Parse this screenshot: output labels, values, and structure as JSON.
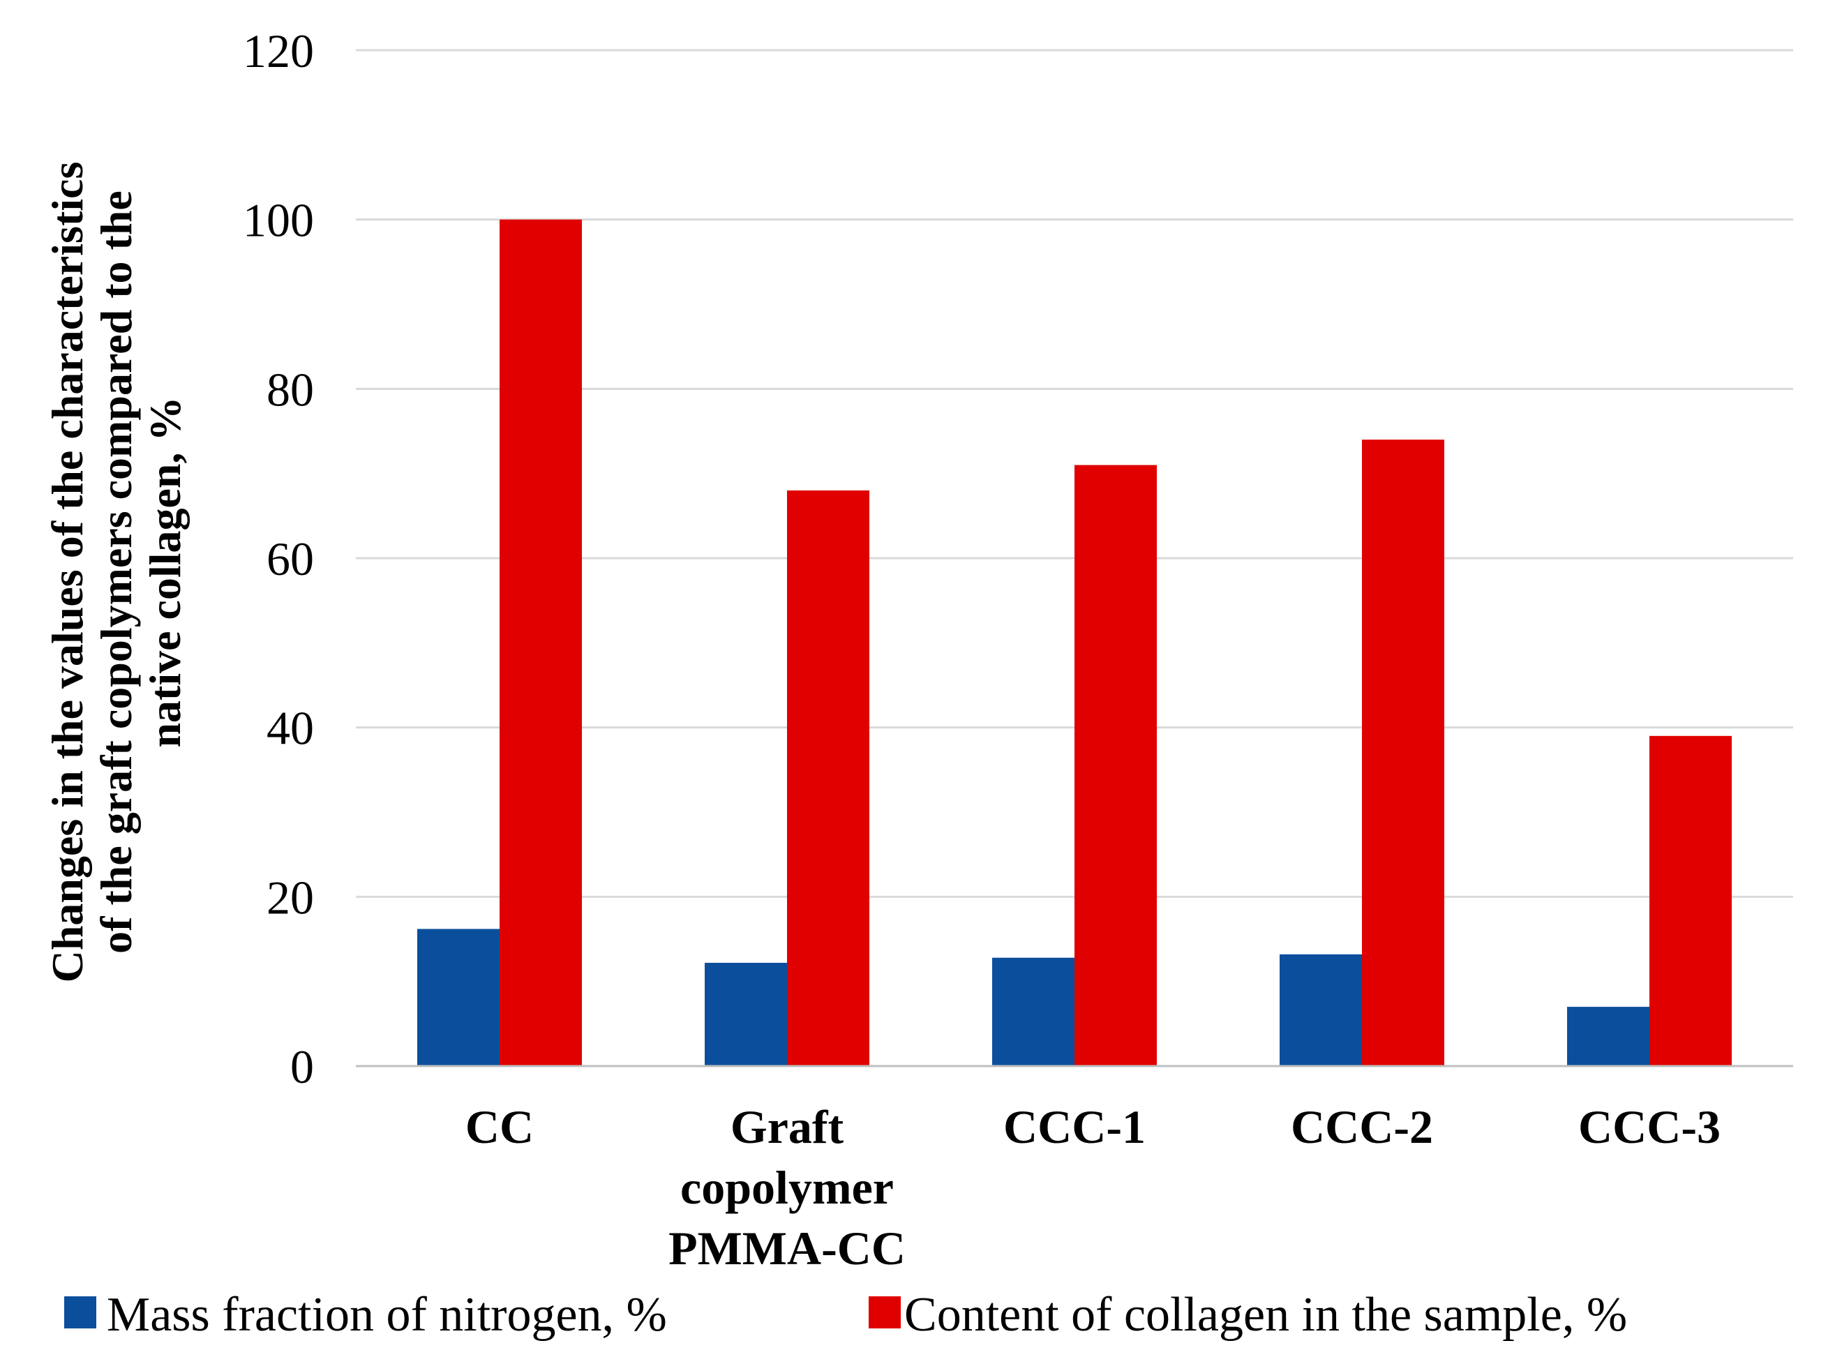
{
  "chart_data": {
    "type": "bar",
    "title": "",
    "xlabel": "",
    "ylabel": "Changes in the values of the characteristics of the graft copolymers compared to the native collagen, %",
    "ylabel_lines": [
      "Changes in the values of the characteristics",
      "of the graft copolymers compared to the",
      "native collagen, %"
    ],
    "categories": [
      "CC",
      "Graft copolymer PMMA-CC",
      "CCC-1",
      "CCC-2",
      "CCC-3"
    ],
    "category_lines": [
      [
        "CC"
      ],
      [
        "Graft",
        "copolymer",
        "PMMA-CC"
      ],
      [
        "CCC-1"
      ],
      [
        "CCC-2"
      ],
      [
        "CCC-3"
      ]
    ],
    "ylim": [
      0,
      120
    ],
    "yticks": [
      0,
      20,
      40,
      60,
      80,
      100,
      120
    ],
    "grid": true,
    "legend_position": "bottom",
    "series": [
      {
        "name": "Mass fraction of nitrogen, %",
        "color": "#0B4F9C",
        "values": [
          16.2,
          12.2,
          12.8,
          13.2,
          7.0
        ]
      },
      {
        "name": "Content of collagen in the sample, %",
        "color": "#E00000",
        "values": [
          100,
          68,
          71,
          74,
          39
        ]
      }
    ]
  }
}
